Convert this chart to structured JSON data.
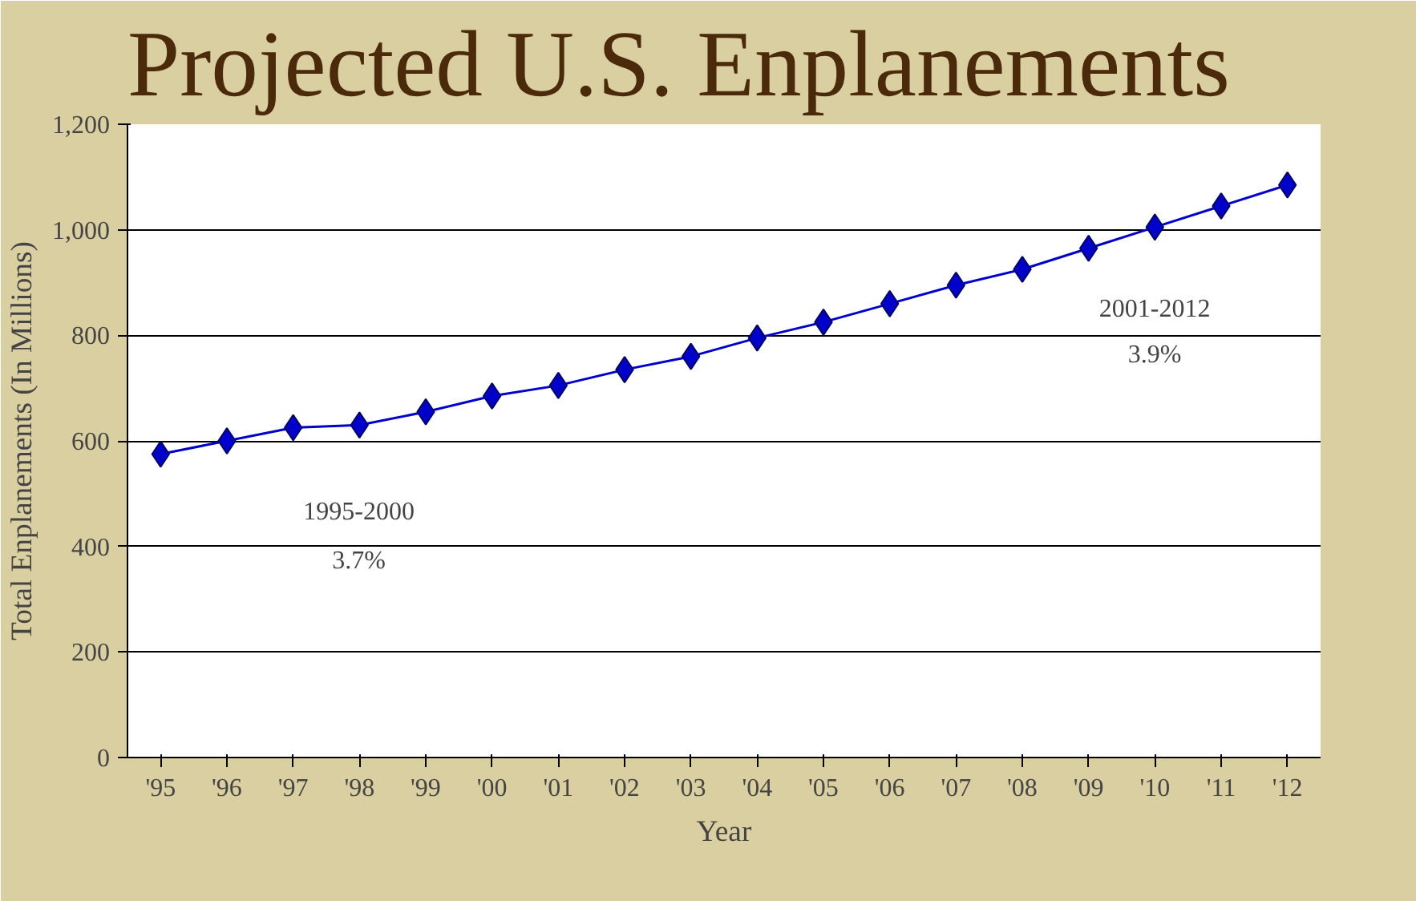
{
  "chart_data": {
    "type": "line",
    "title": "Projected U.S. Enplanements",
    "xlabel": "Year",
    "ylabel": "Total Enplanements (In Millions)",
    "categories": [
      "'95",
      "'96",
      "'97",
      "'98",
      "'99",
      "'00",
      "'01",
      "'02",
      "'03",
      "'04",
      "'05",
      "'06",
      "'07",
      "'08",
      "'09",
      "'10",
      "'11",
      "'12"
    ],
    "series": [
      {
        "color": "#0000cc",
        "values": [
          575,
          600,
          625,
          630,
          655,
          685,
          705,
          735,
          760,
          795,
          825,
          860,
          895,
          925,
          965,
          1005,
          1045,
          1085
        ]
      }
    ],
    "ylim": [
      0,
      1200
    ],
    "yticks": [
      0,
      {
        "value": 200,
        "label": "200"
      },
      400,
      600,
      800,
      {
        "value": 1000,
        "label": "1,000"
      },
      {
        "value": 1200,
        "label": "1,200"
      }
    ],
    "grid": "y",
    "marker": "diamond",
    "line_style": "solid",
    "annotations": [
      "1995-2000",
      "3.7%",
      "2001-2012",
      "3.9%"
    ]
  }
}
